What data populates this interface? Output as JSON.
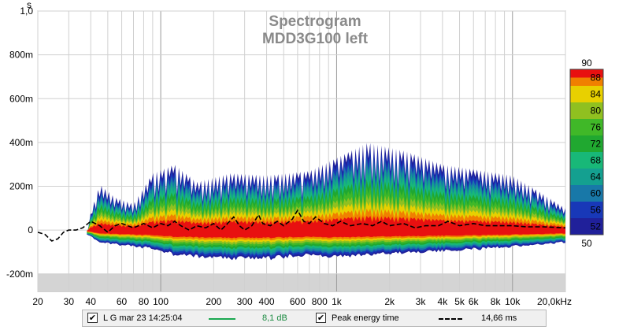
{
  "chart_data": {
    "type": "heatmap",
    "title": "Spectrogram",
    "subtitle": "MDD3G100 left",
    "y_unit_label": "s",
    "y_ticks": [
      {
        "value": 1.0,
        "label": "1,0"
      },
      {
        "value": 0.8,
        "label": "800m"
      },
      {
        "value": 0.6,
        "label": "600m"
      },
      {
        "value": 0.4,
        "label": "400m"
      },
      {
        "value": 0.2,
        "label": "200m"
      },
      {
        "value": 0.0,
        "label": "0"
      },
      {
        "value": -0.2,
        "label": "-200m"
      }
    ],
    "ylim": [
      -0.28,
      1.0
    ],
    "x_scale": "log",
    "xlim": [
      20,
      20000
    ],
    "x_ticks": [
      {
        "value": 20,
        "label": "20"
      },
      {
        "value": 30,
        "label": "30"
      },
      {
        "value": 40,
        "label": "40"
      },
      {
        "value": 60,
        "label": "60"
      },
      {
        "value": 80,
        "label": "80"
      },
      {
        "value": 100,
        "label": "100"
      },
      {
        "value": 200,
        "label": "200"
      },
      {
        "value": 300,
        "label": "300"
      },
      {
        "value": 400,
        "label": "400"
      },
      {
        "value": 600,
        "label": "600"
      },
      {
        "value": 800,
        "label": "800"
      },
      {
        "value": 1000,
        "label": "1k"
      },
      {
        "value": 2000,
        "label": "2k"
      },
      {
        "value": 3000,
        "label": "3k"
      },
      {
        "value": 4000,
        "label": "4k"
      },
      {
        "value": 5000,
        "label": "5k"
      },
      {
        "value": 6000,
        "label": "6k"
      },
      {
        "value": 8000,
        "label": "8k"
      },
      {
        "value": 10000,
        "label": "10k"
      },
      {
        "value": 20000,
        "label": "20,0kHz"
      }
    ],
    "grid": true,
    "colorbar": {
      "min": 50,
      "max": 90,
      "labels": [
        90,
        88,
        84,
        80,
        76,
        72,
        68,
        64,
        60,
        56,
        52,
        50
      ],
      "bands": [
        {
          "lo": 50,
          "hi": 54,
          "color": "#20209a"
        },
        {
          "lo": 54,
          "hi": 58,
          "color": "#1838b8"
        },
        {
          "lo": 58,
          "hi": 62,
          "color": "#1878a8"
        },
        {
          "lo": 62,
          "hi": 66,
          "color": "#14a090"
        },
        {
          "lo": 66,
          "hi": 70,
          "color": "#18b878"
        },
        {
          "lo": 70,
          "hi": 74,
          "color": "#20a830"
        },
        {
          "lo": 74,
          "hi": 78,
          "color": "#40b828"
        },
        {
          "lo": 78,
          "hi": 82,
          "color": "#90c020"
        },
        {
          "lo": 82,
          "hi": 86,
          "color": "#e8d000"
        },
        {
          "lo": 86,
          "hi": 88,
          "color": "#f08000"
        },
        {
          "lo": 88,
          "hi": 90,
          "color": "#e81010"
        }
      ]
    },
    "spectrogram_envelope": [
      {
        "f": 38,
        "t_top": -0.02,
        "t_bot": -0.02
      },
      {
        "f": 40,
        "t_top": 0.08,
        "t_bot": -0.03
      },
      {
        "f": 45,
        "t_top": 0.21,
        "t_bot": -0.06
      },
      {
        "f": 55,
        "t_top": 0.15,
        "t_bot": -0.07
      },
      {
        "f": 70,
        "t_top": 0.12,
        "t_bot": -0.08
      },
      {
        "f": 90,
        "t_top": 0.26,
        "t_bot": -0.09
      },
      {
        "f": 120,
        "t_top": 0.3,
        "t_bot": -0.12
      },
      {
        "f": 160,
        "t_top": 0.22,
        "t_bot": -0.13
      },
      {
        "f": 250,
        "t_top": 0.26,
        "t_bot": -0.14
      },
      {
        "f": 400,
        "t_top": 0.25,
        "t_bot": -0.14
      },
      {
        "f": 700,
        "t_top": 0.27,
        "t_bot": -0.12
      },
      {
        "f": 1000,
        "t_top": 0.33,
        "t_bot": -0.13
      },
      {
        "f": 1500,
        "t_top": 0.4,
        "t_bot": -0.12
      },
      {
        "f": 2500,
        "t_top": 0.36,
        "t_bot": -0.11
      },
      {
        "f": 4000,
        "t_top": 0.3,
        "t_bot": -0.1
      },
      {
        "f": 7000,
        "t_top": 0.27,
        "t_bot": -0.09
      },
      {
        "f": 10000,
        "t_top": 0.25,
        "t_bot": -0.08
      },
      {
        "f": 14000,
        "t_top": 0.18,
        "t_bot": -0.07
      },
      {
        "f": 20000,
        "t_top": 0.1,
        "t_bot": -0.06
      }
    ],
    "peak_energy_time": {
      "name": "Peak energy time",
      "points": [
        {
          "f": 20,
          "t": -0.01
        },
        {
          "f": 22,
          "t": -0.02
        },
        {
          "f": 24,
          "t": -0.05
        },
        {
          "f": 26,
          "t": -0.04
        },
        {
          "f": 28,
          "t": -0.01
        },
        {
          "f": 30,
          "t": 0.0
        },
        {
          "f": 33,
          "t": 0.0
        },
        {
          "f": 36,
          "t": 0.01
        },
        {
          "f": 40,
          "t": 0.04
        },
        {
          "f": 45,
          "t": 0.02
        },
        {
          "f": 50,
          "t": -0.01
        },
        {
          "f": 55,
          "t": 0.02
        },
        {
          "f": 60,
          "t": 0.03
        },
        {
          "f": 70,
          "t": 0.01
        },
        {
          "f": 80,
          "t": 0.03
        },
        {
          "f": 90,
          "t": 0.01
        },
        {
          "f": 100,
          "t": 0.03
        },
        {
          "f": 110,
          "t": 0.02
        },
        {
          "f": 120,
          "t": 0.04
        },
        {
          "f": 130,
          "t": 0.02
        },
        {
          "f": 145,
          "t": 0.0
        },
        {
          "f": 160,
          "t": 0.02
        },
        {
          "f": 180,
          "t": 0.01
        },
        {
          "f": 200,
          "t": 0.03
        },
        {
          "f": 220,
          "t": 0.0
        },
        {
          "f": 240,
          "t": 0.03
        },
        {
          "f": 260,
          "t": 0.06
        },
        {
          "f": 280,
          "t": 0.02
        },
        {
          "f": 300,
          "t": 0.0
        },
        {
          "f": 330,
          "t": 0.02
        },
        {
          "f": 360,
          "t": 0.07
        },
        {
          "f": 380,
          "t": 0.03
        },
        {
          "f": 420,
          "t": 0.02
        },
        {
          "f": 460,
          "t": 0.04
        },
        {
          "f": 500,
          "t": 0.02
        },
        {
          "f": 560,
          "t": 0.05
        },
        {
          "f": 600,
          "t": 0.09
        },
        {
          "f": 650,
          "t": 0.04
        },
        {
          "f": 700,
          "t": 0.03
        },
        {
          "f": 760,
          "t": 0.06
        },
        {
          "f": 850,
          "t": 0.03
        },
        {
          "f": 950,
          "t": 0.02
        },
        {
          "f": 1050,
          "t": 0.04
        },
        {
          "f": 1200,
          "t": 0.02
        },
        {
          "f": 1400,
          "t": 0.03
        },
        {
          "f": 1600,
          "t": 0.02
        },
        {
          "f": 1800,
          "t": 0.04
        },
        {
          "f": 2000,
          "t": 0.02
        },
        {
          "f": 2400,
          "t": 0.03
        },
        {
          "f": 2800,
          "t": 0.01
        },
        {
          "f": 3200,
          "t": 0.02
        },
        {
          "f": 3800,
          "t": 0.02
        },
        {
          "f": 4300,
          "t": 0.04
        },
        {
          "f": 5000,
          "t": 0.02
        },
        {
          "f": 6000,
          "t": 0.03
        },
        {
          "f": 7000,
          "t": 0.02
        },
        {
          "f": 8500,
          "t": 0.02
        },
        {
          "f": 10000,
          "t": 0.02
        },
        {
          "f": 12000,
          "t": 0.015
        },
        {
          "f": 15000,
          "t": 0.015
        },
        {
          "f": 20000,
          "t": 0.01
        }
      ]
    }
  },
  "legend": {
    "row1": {
      "checked_mark": "✔",
      "label": "L G mar 23 14:25:04",
      "value": "8,1 dB",
      "color": "#1aa850"
    },
    "row2": {
      "checked_mark": "✔",
      "label": "Peak energy time",
      "value": "14,66 ms",
      "color": "#000000"
    }
  }
}
